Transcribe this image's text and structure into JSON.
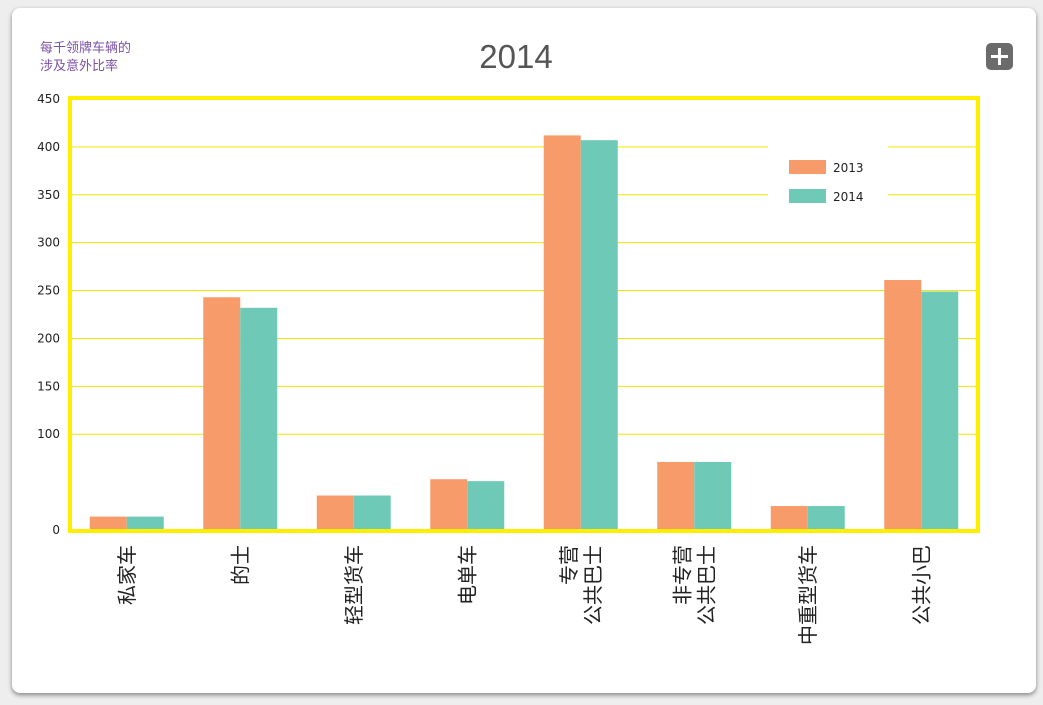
{
  "chart_data": {
    "type": "bar",
    "title": "2014",
    "ylabel_lines": [
      "每千领牌车辆的",
      "涉及意外比率"
    ],
    "xlabel": "",
    "ylim": [
      0,
      450
    ],
    "yticks": [
      0,
      100,
      150,
      200,
      250,
      300,
      350,
      400,
      450
    ],
    "grid": true,
    "legend_position": "top-right",
    "categories": [
      [
        "私家车"
      ],
      [
        "的士"
      ],
      [
        "轻型货车"
      ],
      [
        "电单车"
      ],
      [
        "专营",
        "公共巴士"
      ],
      [
        "非专营",
        "公共巴士"
      ],
      [
        "中重型货车"
      ],
      [
        "公共小巴"
      ]
    ],
    "series": [
      {
        "name": "2013",
        "color": "#f79b6a",
        "values": [
          14,
          243,
          36,
          53,
          412,
          71,
          25,
          261
        ]
      },
      {
        "name": "2014",
        "color": "#6ec9b7",
        "values": [
          14,
          232,
          36,
          51,
          407,
          71,
          25,
          249
        ]
      }
    ],
    "frame_color": "#ffee00",
    "grid_color": "#f2e600"
  },
  "toolbar": {
    "expand_icon": "plus-icon"
  }
}
